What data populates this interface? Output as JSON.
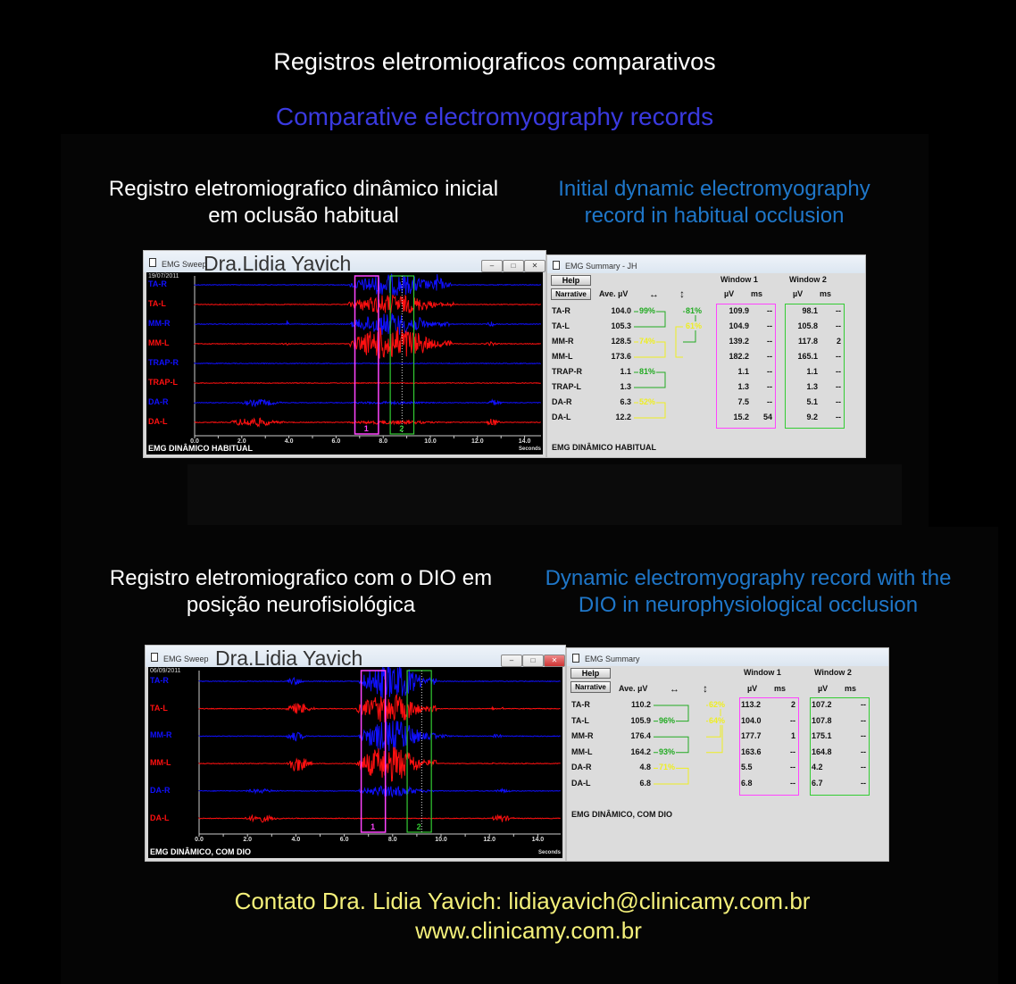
{
  "title_pt": "Registros eletromiograficos comparativos",
  "title_en": "Comparative electromyography records",
  "section1": {
    "caption_pt_1": "Registro eletromiografico dinâmico inicial",
    "caption_pt_2": "em oclusão habitual",
    "caption_en_1": "Initial dynamic electromyography",
    "caption_en_2": "record in habitual occlusion"
  },
  "section2": {
    "caption_pt_1": "Registro eletromiografico com o DIO em",
    "caption_pt_2": "posição neurofisiológica",
    "caption_en_1": "Dynamic electromyography record with the",
    "caption_en_2": "DIO in neurophysiological occlusion"
  },
  "colors": {
    "blue_channel": "#1010ff",
    "red_channel": "#ff1010",
    "window1": "#ff44ff",
    "window2": "#33cc33",
    "green_pct": "#22aa22",
    "yellow_pct": "#eeee22",
    "contact": "#f4f07a"
  },
  "sweep1": {
    "window_title": "EMG Sweep",
    "watermark": "Dra.Lidia Yavich",
    "date": "19/07/2011",
    "footer": "EMG DINÂMICO HABITUAL",
    "x_unit": "Seconds",
    "ticks": [
      "0.0",
      "2.0",
      "4.0",
      "6.0",
      "8.0",
      "10.0",
      "12.0",
      "14.0"
    ],
    "window1_label": "1",
    "window2_label": "2",
    "windows": {
      "w1": [
        6.8,
        7.8
      ],
      "w2": [
        8.3,
        9.3
      ],
      "cursor": 8.8
    },
    "channels": [
      {
        "name": "TA-R",
        "color": "blue",
        "bursts": [
          [
            6.6,
            10.9,
            1.0
          ],
          [
            10.1,
            10.6,
            0.8
          ]
        ]
      },
      {
        "name": "TA-L",
        "color": "red",
        "bursts": [
          [
            6.5,
            11.0,
            0.9
          ]
        ]
      },
      {
        "name": "MM-R",
        "color": "blue",
        "bursts": [
          [
            6.6,
            10.8,
            1.0
          ],
          [
            3.9,
            4.0,
            0.4
          ],
          [
            12.4,
            12.8,
            0.2
          ]
        ]
      },
      {
        "name": "MM-L",
        "color": "red",
        "bursts": [
          [
            6.6,
            10.9,
            1.6
          ],
          [
            3.7,
            4.1,
            0.1
          ],
          [
            12.3,
            12.9,
            0.15
          ]
        ]
      },
      {
        "name": "TRAP-R",
        "color": "blue",
        "bursts": []
      },
      {
        "name": "TRAP-L",
        "color": "red",
        "bursts": []
      },
      {
        "name": "DA-R",
        "color": "blue",
        "bursts": [
          [
            2.0,
            3.8,
            0.3
          ],
          [
            12.4,
            13.1,
            0.25
          ],
          [
            6.7,
            10.5,
            0.1
          ]
        ]
      },
      {
        "name": "DA-L",
        "color": "red",
        "bursts": [
          [
            1.5,
            3.8,
            0.4
          ],
          [
            12.4,
            13.0,
            0.35
          ],
          [
            6.5,
            11.0,
            0.15
          ]
        ]
      }
    ]
  },
  "summary1": {
    "window_title": "EMG Summary - JH",
    "help": "Help",
    "narrative": "Narrative",
    "ave_header": "Ave. µV",
    "h_arrow": "↔",
    "v_arrow": "↕",
    "window1": "Window 1",
    "window2": "Window 2",
    "uv": "µV",
    "ms": "ms",
    "footer": "EMG DINÂMICO HABITUAL",
    "rows": [
      {
        "name": "TA-R",
        "ave": "104.0",
        "w1_uv": "109.9",
        "w1_ms": "--",
        "w2_uv": "98.1",
        "w2_ms": "--"
      },
      {
        "name": "TA-L",
        "ave": "105.3",
        "w1_uv": "104.9",
        "w1_ms": "--",
        "w2_uv": "105.8",
        "w2_ms": "--"
      },
      {
        "name": "MM-R",
        "ave": "128.5",
        "w1_uv": "139.2",
        "w1_ms": "--",
        "w2_uv": "117.8",
        "w2_ms": "2"
      },
      {
        "name": "MM-L",
        "ave": "173.6",
        "w1_uv": "182.2",
        "w1_ms": "--",
        "w2_uv": "165.1",
        "w2_ms": "--"
      },
      {
        "name": "TRAP-R",
        "ave": "1.1",
        "w1_uv": "1.1",
        "w1_ms": "--",
        "w2_uv": "1.1",
        "w2_ms": "--"
      },
      {
        "name": "TRAP-L",
        "ave": "1.3",
        "w1_uv": "1.3",
        "w1_ms": "--",
        "w2_uv": "1.3",
        "w2_ms": "--"
      },
      {
        "name": "DA-R",
        "ave": "6.3",
        "w1_uv": "7.5",
        "w1_ms": "--",
        "w2_uv": "5.1",
        "w2_ms": "--"
      },
      {
        "name": "DA-L",
        "ave": "12.2",
        "w1_uv": "15.2",
        "w1_ms": "54",
        "w2_uv": "9.2",
        "w2_ms": "--"
      }
    ],
    "pairs": [
      {
        "a": 0,
        "b": 1,
        "col": 1,
        "color": "green",
        "pct": "99%",
        "label_row": 0
      },
      {
        "a": 0,
        "b": 2,
        "col": 2,
        "color": "green",
        "pct": "81%",
        "label_row": 0
      },
      {
        "a": 1,
        "b": 3,
        "col": 3,
        "color": "yellow",
        "pct": "61%",
        "label_row": 1
      },
      {
        "a": 2,
        "b": 3,
        "col": 1,
        "color": "yellow",
        "pct": "74%",
        "label_row": 2
      },
      {
        "a": 4,
        "b": 5,
        "col": 1,
        "color": "green",
        "pct": "81%",
        "label_row": 4
      },
      {
        "a": 6,
        "b": 7,
        "col": 1,
        "color": "yellow",
        "pct": "52%",
        "label_row": 6
      }
    ]
  },
  "sweep2": {
    "window_title": "EMG Sweep",
    "watermark": "Dra.Lidia Yavich",
    "date": "06/09/2011",
    "footer": "EMG DINÂMICO, COM DIO",
    "x_unit": "Seconds",
    "ticks": [
      "0.0",
      "2.0",
      "4.0",
      "6.0",
      "8.0",
      "10.0",
      "12.0",
      "14.0"
    ],
    "window1_label": "1",
    "window2_label": "2",
    "windows": {
      "w1": [
        6.7,
        7.7
      ],
      "w2": [
        8.6,
        9.6
      ],
      "cursor": 9.2
    },
    "channels": [
      {
        "name": "TA-R",
        "color": "blue",
        "bursts": [
          [
            3.6,
            4.4,
            0.4
          ],
          [
            6.6,
            9.8,
            2.0
          ]
        ]
      },
      {
        "name": "TA-L",
        "color": "red",
        "bursts": [
          [
            3.6,
            4.8,
            0.6
          ],
          [
            6.5,
            9.8,
            1.6
          ],
          [
            12.1,
            12.2,
            0.2
          ],
          [
            12.5,
            12.6,
            0.2
          ]
        ]
      },
      {
        "name": "MM-R",
        "color": "blue",
        "bursts": [
          [
            3.6,
            4.5,
            0.5
          ],
          [
            6.6,
            9.8,
            1.8
          ],
          [
            9.8,
            10.5,
            0.15
          ],
          [
            12.1,
            12.6,
            0.2
          ]
        ]
      },
      {
        "name": "MM-L",
        "color": "red",
        "bursts": [
          [
            3.6,
            4.7,
            0.9
          ],
          [
            6.5,
            9.8,
            2.0
          ],
          [
            12.1,
            12.2,
            0.1
          ]
        ]
      },
      {
        "name": "DA-R",
        "color": "blue",
        "bursts": [
          [
            1.9,
            3.4,
            0.2
          ],
          [
            12.2,
            13.0,
            0.2
          ],
          [
            6.6,
            9.7,
            0.6
          ]
        ]
      },
      {
        "name": "DA-L",
        "color": "red",
        "bursts": [
          [
            1.9,
            3.4,
            0.4
          ],
          [
            12.1,
            13.0,
            0.4
          ]
        ]
      }
    ]
  },
  "summary2": {
    "window_title": "EMG Summary",
    "help": "Help",
    "narrative": "Narrative",
    "ave_header": "Ave. µV",
    "h_arrow": "↔",
    "v_arrow": "↕",
    "window1": "Window 1",
    "window2": "Window 2",
    "uv": "µV",
    "ms": "ms",
    "footer": "EMG DINÂMICO, COM DIO",
    "rows": [
      {
        "name": "TA-R",
        "ave": "110.2",
        "w1_uv": "113.2",
        "w1_ms": "2",
        "w2_uv": "107.2",
        "w2_ms": "--"
      },
      {
        "name": "TA-L",
        "ave": "105.9",
        "w1_uv": "104.0",
        "w1_ms": "--",
        "w2_uv": "107.8",
        "w2_ms": "--"
      },
      {
        "name": "MM-R",
        "ave": "176.4",
        "w1_uv": "177.7",
        "w1_ms": "1",
        "w2_uv": "175.1",
        "w2_ms": "--"
      },
      {
        "name": "MM-L",
        "ave": "164.2",
        "w1_uv": "163.6",
        "w1_ms": "--",
        "w2_uv": "164.8",
        "w2_ms": "--"
      },
      {
        "name": "DA-R",
        "ave": "4.8",
        "w1_uv": "5.5",
        "w1_ms": "--",
        "w2_uv": "4.2",
        "w2_ms": "--"
      },
      {
        "name": "DA-L",
        "ave": "6.8",
        "w1_uv": "6.8",
        "w1_ms": "--",
        "w2_uv": "6.7",
        "w2_ms": "--"
      }
    ],
    "pairs": [
      {
        "a": 0,
        "b": 1,
        "col": 1,
        "color": "green",
        "pct": "96%",
        "label_row": 1
      },
      {
        "a": 0,
        "b": 2,
        "col": 2,
        "color": "yellow",
        "pct": "62%",
        "label_row": 0
      },
      {
        "a": 1,
        "b": 3,
        "col": 3,
        "color": "yellow",
        "pct": "64%",
        "label_row": 1
      },
      {
        "a": 2,
        "b": 3,
        "col": 1,
        "color": "green",
        "pct": "93%",
        "label_row": 3
      },
      {
        "a": 4,
        "b": 5,
        "col": 1,
        "color": "yellow",
        "pct": "71%",
        "label_row": 4
      }
    ]
  },
  "contact": {
    "line1": "Contato  Dra. Lidia Yavich:  lidiayavich@clinicamy.com.br",
    "line2": "www.clinicamy.com.br"
  }
}
